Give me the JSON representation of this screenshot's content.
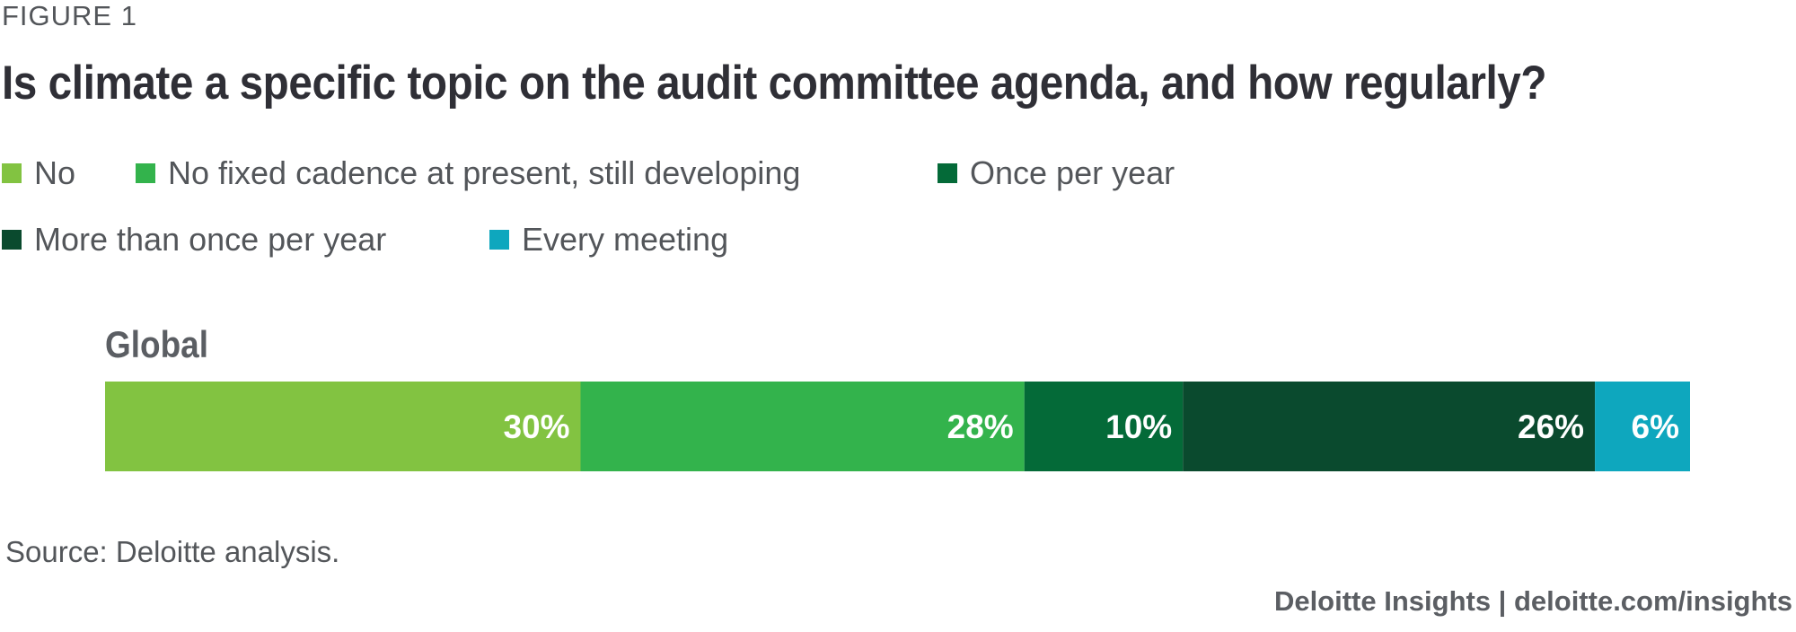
{
  "figure_label": "FIGURE 1",
  "footer": {
    "source": "Source: Deloitte analysis.",
    "credit": "Deloitte Insights | deloitte.com/insights"
  },
  "chart_data": {
    "type": "bar",
    "orientation": "horizontal",
    "stacked": true,
    "title": "Is climate a specific topic on the audit committee agenda, and how regularly?",
    "categories": [
      "Global"
    ],
    "unit": "%",
    "xlim": [
      0,
      100
    ],
    "grid": false,
    "legend_position": "top",
    "series": [
      {
        "name": "No",
        "values": [
          30
        ],
        "label": "30%",
        "color": "#82c341"
      },
      {
        "name": "No fixed cadence at present, still developing",
        "values": [
          28
        ],
        "label": "28%",
        "color": "#33b34c"
      },
      {
        "name": "Once per year",
        "values": [
          10
        ],
        "label": "10%",
        "color": "#046a38"
      },
      {
        "name": "More than once per year",
        "values": [
          26
        ],
        "label": "26%",
        "color": "#0a4a2e"
      },
      {
        "name": "Every meeting",
        "values": [
          6
        ],
        "label": "6%",
        "color": "#0ea7be"
      }
    ]
  }
}
